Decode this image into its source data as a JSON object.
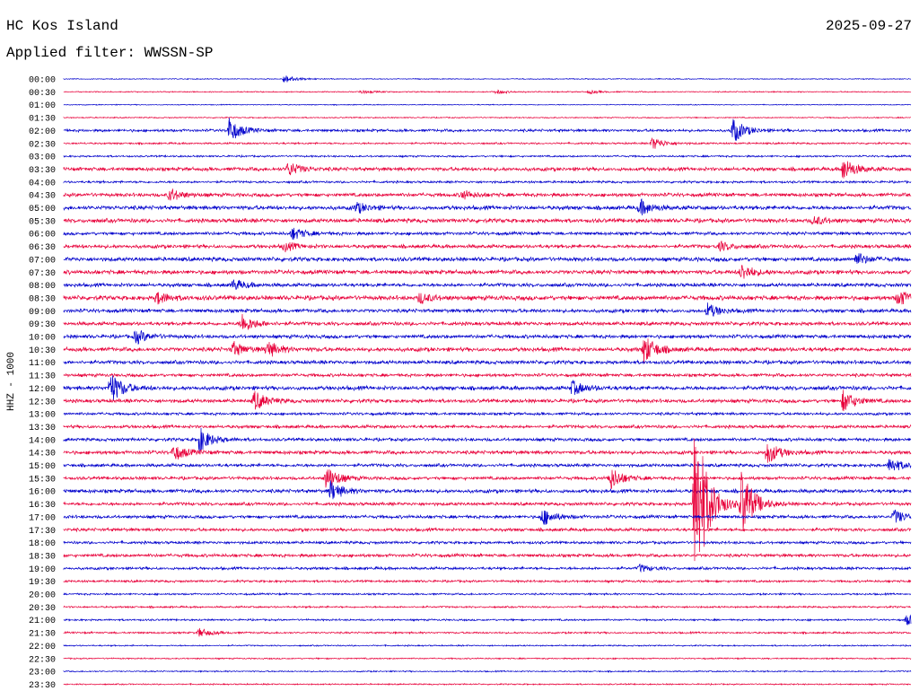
{
  "header": {
    "station": "HC Kos Island",
    "filter": "Applied filter: WWSSN-SP",
    "date": "2025-09-27"
  },
  "chart_data": {
    "type": "line",
    "ylabel": "HHZ - 1000",
    "row_labels": [
      "00:00",
      "00:30",
      "01:00",
      "01:30",
      "02:00",
      "02:30",
      "03:00",
      "03:30",
      "04:00",
      "04:30",
      "05:00",
      "05:30",
      "06:00",
      "06:30",
      "07:00",
      "07:30",
      "08:00",
      "08:30",
      "09:00",
      "09:30",
      "10:00",
      "10:30",
      "11:00",
      "11:30",
      "12:00",
      "12:30",
      "13:00",
      "13:30",
      "14:00",
      "14:30",
      "15:00",
      "15:30",
      "16:00",
      "16:30",
      "17:00",
      "17:30",
      "18:00",
      "18:30",
      "19:00",
      "19:30",
      "20:00",
      "20:30",
      "21:00",
      "21:30",
      "22:00",
      "22:30",
      "23:00",
      "23:30"
    ],
    "colors": [
      "#0000cc",
      "#e8003a"
    ],
    "noise_amplitude": [
      0.4,
      0.5,
      0.4,
      0.5,
      1.2,
      0.8,
      0.8,
      1.6,
      1.0,
      1.6,
      1.8,
      1.8,
      1.4,
      1.6,
      1.8,
      1.8,
      1.6,
      2.0,
      1.6,
      1.6,
      1.6,
      1.8,
      1.6,
      1.4,
      1.8,
      1.6,
      1.2,
      1.4,
      1.4,
      1.6,
      1.4,
      1.4,
      1.6,
      1.4,
      1.4,
      1.4,
      1.2,
      1.4,
      1.2,
      1.0,
      0.8,
      0.8,
      0.8,
      0.8,
      0.6,
      0.6,
      0.6,
      0.6
    ],
    "events": [
      {
        "row": 0,
        "t_frac": 0.26,
        "amplitude": 5
      },
      {
        "row": 1,
        "t_frac": 0.35,
        "amplitude": 2
      },
      {
        "row": 1,
        "t_frac": 0.51,
        "amplitude": 2
      },
      {
        "row": 1,
        "t_frac": 0.62,
        "amplitude": 2
      },
      {
        "row": 4,
        "t_frac": 0.195,
        "amplitude": 14
      },
      {
        "row": 4,
        "t_frac": 0.79,
        "amplitude": 14
      },
      {
        "row": 5,
        "t_frac": 0.695,
        "amplitude": 7
      },
      {
        "row": 7,
        "t_frac": 0.265,
        "amplitude": 8
      },
      {
        "row": 7,
        "t_frac": 0.92,
        "amplitude": 13
      },
      {
        "row": 9,
        "t_frac": 0.125,
        "amplitude": 7
      },
      {
        "row": 9,
        "t_frac": 0.47,
        "amplitude": 5
      },
      {
        "row": 10,
        "t_frac": 0.345,
        "amplitude": 6
      },
      {
        "row": 10,
        "t_frac": 0.68,
        "amplitude": 9
      },
      {
        "row": 11,
        "t_frac": 0.885,
        "amplitude": 5
      },
      {
        "row": 12,
        "t_frac": 0.27,
        "amplitude": 7
      },
      {
        "row": 13,
        "t_frac": 0.26,
        "amplitude": 5
      },
      {
        "row": 13,
        "t_frac": 0.775,
        "amplitude": 5
      },
      {
        "row": 14,
        "t_frac": 0.935,
        "amplitude": 7
      },
      {
        "row": 15,
        "t_frac": 0.8,
        "amplitude": 9
      },
      {
        "row": 16,
        "t_frac": 0.2,
        "amplitude": 6
      },
      {
        "row": 17,
        "t_frac": 0.11,
        "amplitude": 7
      },
      {
        "row": 17,
        "t_frac": 0.42,
        "amplitude": 6
      },
      {
        "row": 17,
        "t_frac": 0.985,
        "amplitude": 9
      },
      {
        "row": 18,
        "t_frac": 0.76,
        "amplitude": 8
      },
      {
        "row": 19,
        "t_frac": 0.21,
        "amplitude": 11
      },
      {
        "row": 20,
        "t_frac": 0.085,
        "amplitude": 8
      },
      {
        "row": 21,
        "t_frac": 0.2,
        "amplitude": 8
      },
      {
        "row": 21,
        "t_frac": 0.24,
        "amplitude": 9
      },
      {
        "row": 21,
        "t_frac": 0.685,
        "amplitude": 16
      },
      {
        "row": 24,
        "t_frac": 0.055,
        "amplitude": 18
      },
      {
        "row": 24,
        "t_frac": 0.6,
        "amplitude": 8
      },
      {
        "row": 25,
        "t_frac": 0.225,
        "amplitude": 11
      },
      {
        "row": 25,
        "t_frac": 0.92,
        "amplitude": 12
      },
      {
        "row": 28,
        "t_frac": 0.16,
        "amplitude": 14
      },
      {
        "row": 29,
        "t_frac": 0.13,
        "amplitude": 9
      },
      {
        "row": 29,
        "t_frac": 0.83,
        "amplitude": 13
      },
      {
        "row": 30,
        "t_frac": 0.975,
        "amplitude": 9
      },
      {
        "row": 31,
        "t_frac": 0.31,
        "amplitude": 14
      },
      {
        "row": 31,
        "t_frac": 0.645,
        "amplitude": 13
      },
      {
        "row": 32,
        "t_frac": 0.315,
        "amplitude": 11
      },
      {
        "row": 33,
        "t_frac": 0.745,
        "amplitude": 110
      },
      {
        "row": 33,
        "t_frac": 0.8,
        "amplitude": 40
      },
      {
        "row": 34,
        "t_frac": 0.565,
        "amplitude": 10
      },
      {
        "row": 34,
        "t_frac": 0.98,
        "amplitude": 8
      },
      {
        "row": 38,
        "t_frac": 0.68,
        "amplitude": 4
      },
      {
        "row": 42,
        "t_frac": 0.995,
        "amplitude": 6
      },
      {
        "row": 43,
        "t_frac": 0.16,
        "amplitude": 5
      }
    ]
  }
}
